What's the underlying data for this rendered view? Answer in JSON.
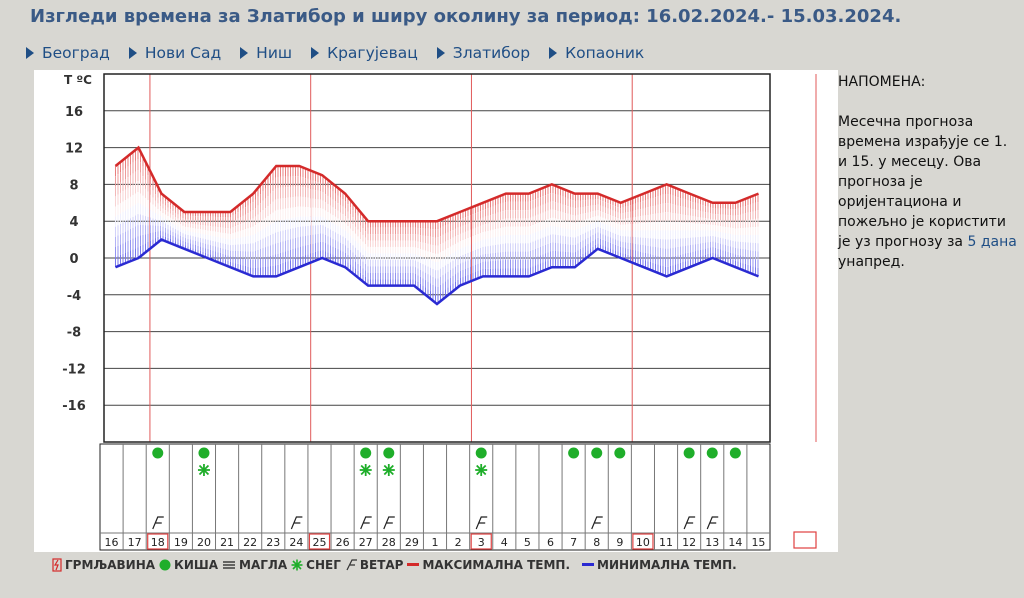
{
  "page": {
    "title": "Изгледи времена за Златибор и ширу околину за период: 16.02.2024.- 15.03.2024."
  },
  "nav": [
    {
      "label": "Београд"
    },
    {
      "label": "Нови Сад"
    },
    {
      "label": "Ниш"
    },
    {
      "label": "Крагујевац"
    },
    {
      "label": "Златибор"
    },
    {
      "label": "Копаоник"
    }
  ],
  "note": {
    "heading": "НАПОМЕНА:",
    "text_before_link": "Месечна прогноза времена израђује се 1. и 15. у месецу. Ова прогноза је оријентациона и пожељно је користити је уз прогнозу за",
    "link": "5 дана",
    "text_after_link": "унапред."
  },
  "legend": {
    "thunder": "ГРМЉАВИНА",
    "rain": "КИША",
    "fog": "МАГЛА",
    "snow": "СНЕГ",
    "wind": "ВЕТАР",
    "max": "МАКСИМАЛНА ТЕМП.",
    "min": "МИНИМАЛНА ТЕМП."
  },
  "colors": {
    "max": "#d42a2a",
    "min": "#2a2ad2",
    "rain": "#1fae2a",
    "snow": "#1fae2a",
    "title": "#3a5a86",
    "link": "#1f4e85"
  },
  "chart_data": {
    "type": "line",
    "ylabel": "T ºC",
    "yticks": [
      16,
      12,
      8,
      4,
      0,
      -4,
      -8,
      -12,
      -16
    ],
    "ylim": [
      -20,
      20
    ],
    "days": [
      "16",
      "17",
      "18",
      "19",
      "20",
      "21",
      "22",
      "23",
      "24",
      "25",
      "26",
      "27",
      "28",
      "29",
      "1",
      "2",
      "3",
      "4",
      "5",
      "6",
      "7",
      "8",
      "9",
      "10",
      "11",
      "12",
      "13",
      "14",
      "15"
    ],
    "highlighted_days": [
      "18",
      "25",
      "3",
      "10"
    ],
    "series": [
      {
        "key": "max",
        "values": [
          10,
          12,
          7,
          5,
          5,
          5,
          7,
          10,
          10,
          9,
          7,
          4,
          4,
          4,
          4,
          5,
          6,
          7,
          7,
          8,
          7,
          7,
          6,
          7,
          8,
          7,
          6,
          6,
          7
        ]
      },
      {
        "key": "min",
        "values": [
          -1,
          0,
          2,
          1,
          0,
          -1,
          -2,
          -2,
          -1,
          0,
          -1,
          -3,
          -3,
          -3,
          -5,
          -3,
          -2,
          -2,
          -2,
          -1,
          -1,
          1,
          0,
          -1,
          -2,
          -1,
          0,
          -1,
          -2
        ]
      }
    ],
    "rain_days": [
      "18",
      "20",
      "27",
      "28",
      "3",
      "7",
      "8",
      "9",
      "12",
      "13",
      "14"
    ],
    "snow_days": [
      "20",
      "27",
      "28",
      "3"
    ],
    "wind_days": [
      "18",
      "24",
      "27",
      "28",
      "3",
      "8",
      "12",
      "13"
    ]
  }
}
